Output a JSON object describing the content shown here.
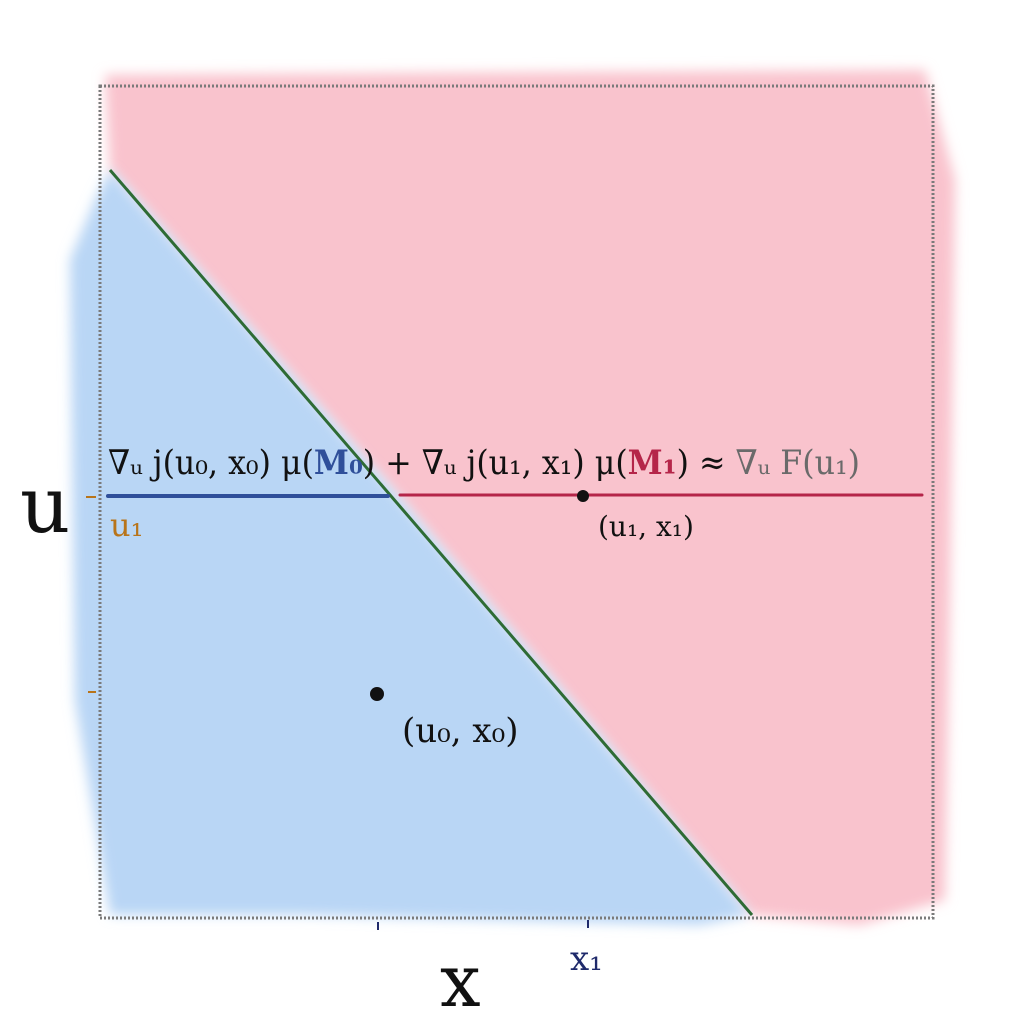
{
  "axes": {
    "y_label": "u",
    "x_label": "x",
    "y_tick_label": "u₁",
    "x_tick_label": "x₁"
  },
  "points": {
    "p0_label": "(u₀, x₀)",
    "p1_label": "(u₁, x₁)"
  },
  "equation": {
    "part1": "∇ᵤ j(u₀, x₀) μ(",
    "m0": "M₀",
    "part2": ") + ∇ᵤ j(u₁, x₁) μ(",
    "m1": "M₁",
    "part3": ") ≈ ",
    "rhs": "∇ᵤ F(u₁)"
  },
  "colors": {
    "region_blue": "#b9d6f5",
    "region_pink": "#f9c3cd",
    "boundary_green": "#2e6b35",
    "line_blue": "#2f4f9a",
    "line_red": "#b52549",
    "frame_gray": "#7a7a7a",
    "tick_orange": "#b8741a",
    "tick_navy": "#1f2a6b",
    "ink": "#111111",
    "rhs_gray": "#6a6a6a"
  }
}
